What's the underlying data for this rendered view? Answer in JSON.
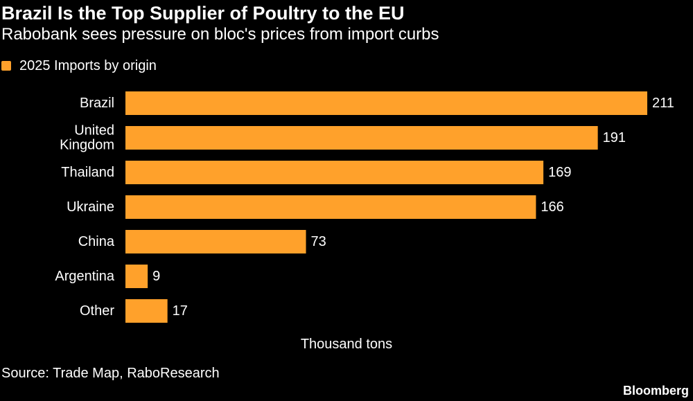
{
  "header": {
    "title": "Brazil Is the Top Supplier of Poultry to the EU",
    "subtitle": "Rabobank sees pressure on bloc's prices from import curbs"
  },
  "legend": {
    "label": "2025 Imports by origin"
  },
  "colors": {
    "background": "#000000",
    "bar": "#ffa12b",
    "text": "#ffffff"
  },
  "chart_data": {
    "type": "bar",
    "orientation": "horizontal",
    "categories": [
      "Brazil",
      "United Kingdom",
      "Thailand",
      "Ukraine",
      "China",
      "Argentina",
      "Other"
    ],
    "category_lines": [
      [
        "Brazil"
      ],
      [
        "United",
        "Kingdom"
      ],
      [
        "Thailand"
      ],
      [
        "Ukraine"
      ],
      [
        "China"
      ],
      [
        "Argentina"
      ],
      [
        "Other"
      ]
    ],
    "series": [
      {
        "name": "2025 Imports by origin",
        "values": [
          211,
          191,
          169,
          166,
          73,
          9,
          17
        ]
      }
    ],
    "xlabel": "Thousand tons",
    "ylabel": "",
    "xlim": [
      0,
      211
    ],
    "grid": false,
    "legend_position": "top-left",
    "data_labels": true
  },
  "footer": {
    "source": "Source: Trade Map, RaboResearch",
    "brand": "Bloomberg"
  }
}
